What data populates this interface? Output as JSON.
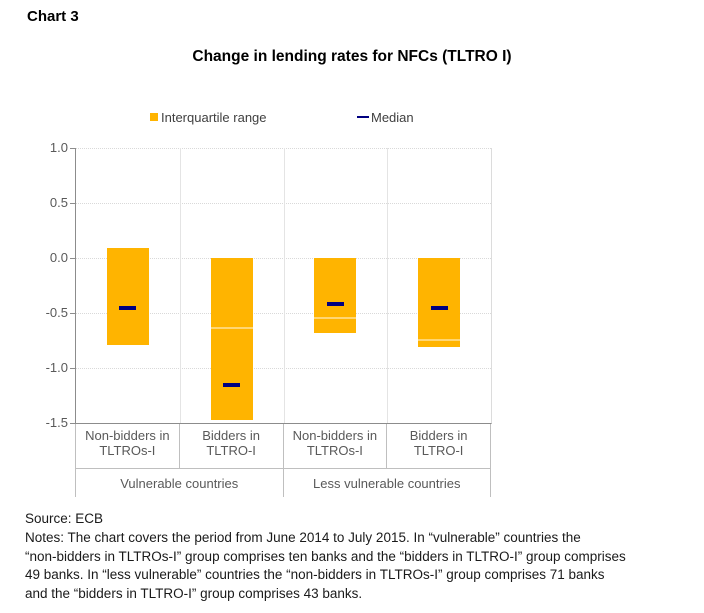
{
  "page": {
    "chart_label": "Chart 3"
  },
  "title": "Change in lending rates for NFCs (TLTRO I)",
  "legend": [
    {
      "label": "Interquartile range",
      "marker": "square",
      "color": "#FFB400"
    },
    {
      "label": "Median",
      "marker": "dash",
      "color": "#000080"
    }
  ],
  "colors": {
    "bar": "#FFB400",
    "median": "#000080",
    "gridline": "#D9D9D9",
    "axis": "#8C8C8C",
    "table_border": "#BFBFBF",
    "tick_text": "#595959",
    "category_text": "#595959",
    "legend_text": "#404040",
    "separator": "#E4E4E4"
  },
  "source": "Source: ECB",
  "notes_lines": [
    "Notes: The chart covers the period from June 2014 to July 2015. In “vulnerable” countries the",
    "“non-bidders in TLTROs-I” group comprises ten banks and the “bidders in TLTRO-I” group comprises",
    "49 banks. In “less vulnerable” countries the “non-bidders in TLTROs-I” group comprises 71 banks",
    "and the “bidders in TLTRO-I” group comprises 43 banks."
  ],
  "chart_data": {
    "type": "bar",
    "subtype": "floating-range-bars-with-median-markers",
    "title": "Change in lending rates for NFCs (TLTRO I)",
    "categories": [
      {
        "line1": "Non-bidders in",
        "line2": "TLTROs-I"
      },
      {
        "line1": "Bidders in",
        "line2": "TLTRO-I"
      },
      {
        "line1": "Non-bidders in",
        "line2": "TLTROs-I"
      },
      {
        "line1": "Bidders in",
        "line2": "TLTRO-I"
      }
    ],
    "groups": [
      "Vulnerable countries",
      "Less vulnerable countries"
    ],
    "ylabel": "",
    "xlabel": "",
    "ylim": [
      -1.5,
      1.0
    ],
    "yticks": [
      "1.0",
      "0.5",
      "0.0",
      "-0.5",
      "-1.0",
      "-1.5"
    ],
    "grid": "horizontal-dotted",
    "legend_position": "top",
    "series": [
      {
        "name": "Interquartile range",
        "upper": [
          0.09,
          0.0,
          0.0,
          0.0
        ],
        "lower": [
          -0.79,
          -1.47,
          -0.68,
          -0.81
        ]
      },
      {
        "name": "Median",
        "values": [
          -0.45,
          -1.15,
          -0.42,
          -0.45
        ]
      }
    ],
    "segment_boundaries": [
      null,
      -0.63,
      -0.54,
      -0.74
    ]
  }
}
